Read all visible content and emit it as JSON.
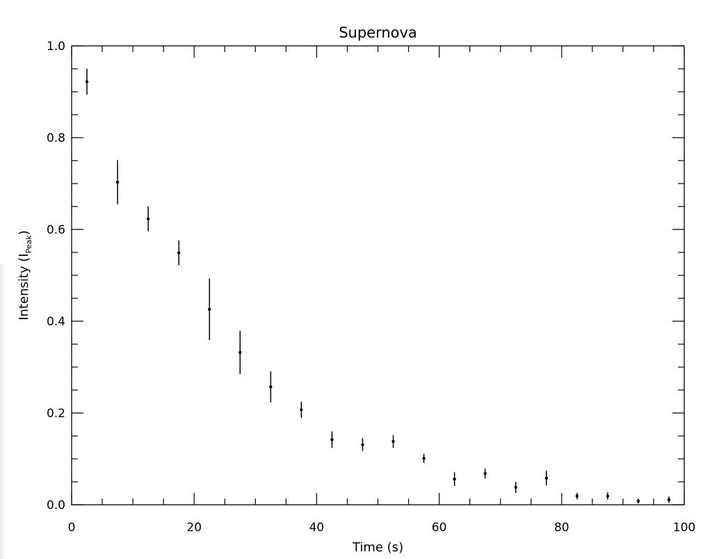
{
  "chart_data": {
    "type": "scatter",
    "title": "Supernova",
    "xlabel": "Time (s)",
    "ylabel": {
      "prefix": "Intensity (I",
      "subscript": "Peak",
      "suffix": ")"
    },
    "xlim": [
      0,
      100
    ],
    "ylim": [
      0,
      1.0
    ],
    "x_major_ticks": [
      0,
      20,
      40,
      60,
      80,
      100
    ],
    "x_tick_labels": [
      "0",
      "20",
      "40",
      "60",
      "80",
      "100"
    ],
    "y_major_ticks": [
      0,
      0.2,
      0.4,
      0.6,
      0.8,
      1.0
    ],
    "y_tick_labels": [
      "0.0",
      "0.2",
      "0.4",
      "0.6",
      "0.8",
      "1.0"
    ],
    "x_minor_step": 5,
    "y_minor_step": 0.05,
    "grid": false,
    "series": [
      {
        "marker": "point",
        "error_bars": "vertical",
        "color": "#000000",
        "x": [
          2.5,
          7.5,
          12.5,
          17.5,
          22.5,
          27.5,
          32.5,
          37.5,
          42.5,
          47.5,
          52.5,
          57.5,
          62.5,
          67.5,
          72.5,
          77.5,
          82.5,
          87.5,
          92.5,
          97.5
        ],
        "y": [
          0.922,
          0.703,
          0.623,
          0.549,
          0.426,
          0.332,
          0.257,
          0.207,
          0.142,
          0.131,
          0.138,
          0.101,
          0.056,
          0.068,
          0.038,
          0.058,
          0.019,
          0.019,
          0.008,
          0.011
        ],
        "err": [
          0.028,
          0.048,
          0.027,
          0.027,
          0.067,
          0.047,
          0.034,
          0.018,
          0.018,
          0.014,
          0.014,
          0.01,
          0.015,
          0.011,
          0.012,
          0.016,
          0.007,
          0.008,
          0.005,
          0.007
        ]
      }
    ]
  }
}
